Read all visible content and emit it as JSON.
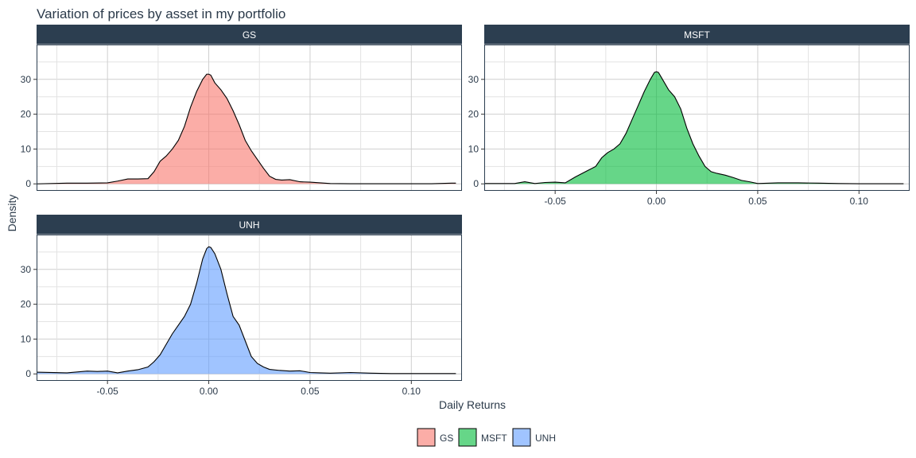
{
  "chart_data": {
    "type": "area",
    "title": "Variation of prices by asset in my portfolio",
    "xlabel": "Daily Returns",
    "ylabel": "Density",
    "xlim": [
      -0.085,
      0.125
    ],
    "x_ticks": [
      -0.05,
      0.0,
      0.05,
      0.1
    ],
    "x_tick_labels": [
      "-0.05",
      "0.00",
      "0.05",
      "0.10"
    ],
    "grid": true,
    "legend_position": "bottom",
    "strip_color": "#2c3e50",
    "panels": [
      {
        "name": "GS",
        "fill": "#f8766d",
        "ylim": [
          -2,
          40
        ],
        "y_ticks": [
          0,
          10,
          20,
          30
        ],
        "x": [
          -0.085,
          -0.07,
          -0.06,
          -0.05,
          -0.045,
          -0.04,
          -0.035,
          -0.03,
          -0.027,
          -0.024,
          -0.021,
          -0.018,
          -0.015,
          -0.012,
          -0.009,
          -0.006,
          -0.003,
          -0.001,
          0.0,
          0.001,
          0.003,
          0.006,
          0.009,
          0.012,
          0.015,
          0.018,
          0.021,
          0.024,
          0.027,
          0.03,
          0.033,
          0.036,
          0.04,
          0.045,
          0.05,
          0.06,
          0.07,
          0.08,
          0.09,
          0.1,
          0.11,
          0.12,
          0.122
        ],
        "y": [
          0.0,
          0.2,
          0.2,
          0.3,
          0.8,
          1.4,
          1.4,
          1.5,
          3.5,
          6.5,
          8.0,
          10.0,
          12.5,
          16.5,
          22.0,
          26.5,
          30.0,
          31.5,
          31.5,
          31.2,
          29.0,
          27.0,
          24.5,
          21.0,
          17.0,
          12.5,
          9.5,
          7.0,
          4.5,
          2.2,
          1.3,
          1.1,
          1.2,
          0.6,
          0.5,
          0.1,
          0.05,
          0.05,
          0.05,
          0.05,
          0.05,
          0.2,
          0.2
        ]
      },
      {
        "name": "MSFT",
        "fill": "#00ba38",
        "ylim": [
          -2,
          40
        ],
        "y_ticks": [
          0,
          10,
          20,
          30
        ],
        "x": [
          -0.085,
          -0.07,
          -0.065,
          -0.06,
          -0.055,
          -0.05,
          -0.045,
          -0.04,
          -0.035,
          -0.03,
          -0.027,
          -0.024,
          -0.021,
          -0.018,
          -0.015,
          -0.012,
          -0.009,
          -0.006,
          -0.003,
          -0.001,
          0.0,
          0.001,
          0.003,
          0.006,
          0.009,
          0.012,
          0.015,
          0.018,
          0.021,
          0.024,
          0.027,
          0.03,
          0.034,
          0.038,
          0.042,
          0.046,
          0.05,
          0.06,
          0.07,
          0.08,
          0.09,
          0.1,
          0.11,
          0.12,
          0.122
        ],
        "y": [
          0.1,
          0.1,
          0.6,
          0.1,
          0.4,
          0.5,
          0.3,
          2.0,
          3.5,
          5.0,
          7.5,
          9.0,
          10.0,
          11.5,
          14.5,
          18.5,
          22.5,
          26.5,
          30.0,
          32.0,
          32.2,
          32.0,
          30.0,
          27.0,
          25.0,
          21.5,
          16.0,
          11.5,
          8.0,
          5.0,
          3.5,
          3.0,
          2.5,
          1.8,
          1.0,
          0.6,
          0.1,
          0.3,
          0.3,
          0.2,
          0.1,
          0.05,
          0.05,
          0.05,
          0.05
        ]
      },
      {
        "name": "UNH",
        "fill": "#619cff",
        "ylim": [
          -2,
          40
        ],
        "y_ticks": [
          0,
          10,
          20,
          30
        ],
        "x": [
          -0.085,
          -0.07,
          -0.06,
          -0.055,
          -0.05,
          -0.045,
          -0.04,
          -0.035,
          -0.03,
          -0.027,
          -0.024,
          -0.021,
          -0.018,
          -0.015,
          -0.012,
          -0.009,
          -0.006,
          -0.003,
          -0.001,
          0.0,
          0.001,
          0.003,
          0.006,
          0.009,
          0.012,
          0.015,
          0.018,
          0.021,
          0.024,
          0.027,
          0.03,
          0.035,
          0.04,
          0.045,
          0.05,
          0.055,
          0.06,
          0.07,
          0.08,
          0.09,
          0.1,
          0.11,
          0.12,
          0.122
        ],
        "y": [
          0.5,
          0.3,
          0.8,
          0.7,
          0.8,
          0.3,
          0.8,
          1.2,
          2.0,
          3.5,
          5.5,
          8.5,
          11.5,
          14.0,
          16.5,
          20.0,
          26.0,
          33.0,
          36.0,
          36.5,
          36.3,
          34.5,
          30.0,
          23.0,
          16.5,
          14.0,
          9.5,
          5.0,
          3.0,
          2.0,
          1.3,
          1.0,
          0.8,
          0.9,
          0.4,
          0.3,
          0.2,
          0.4,
          0.2,
          0.1,
          0.1,
          0.1,
          0.1,
          0.1
        ]
      }
    ]
  }
}
